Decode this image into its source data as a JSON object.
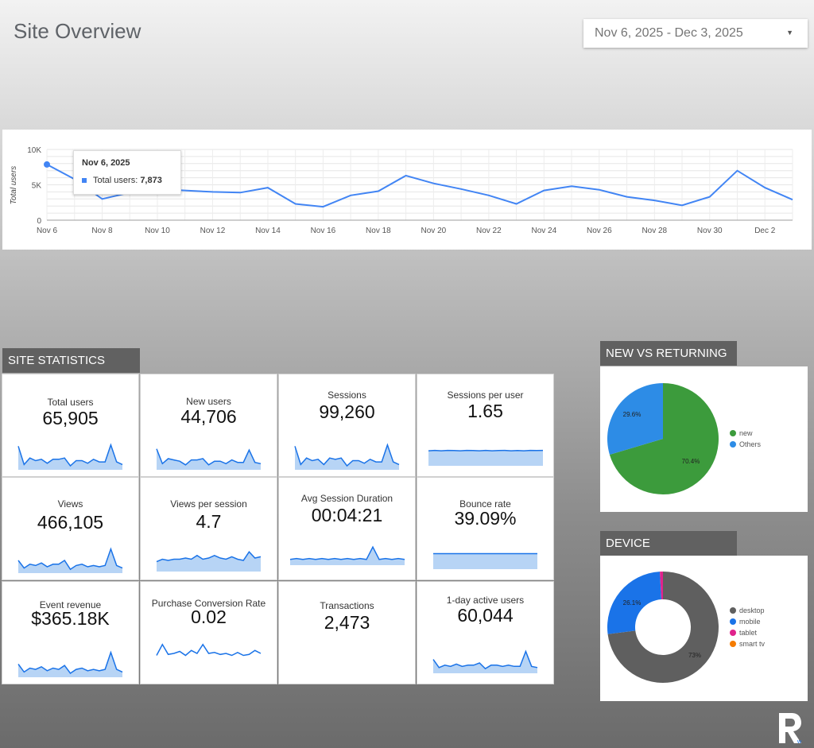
{
  "page": {
    "title": "Site Overview"
  },
  "date_range": {
    "label": "Nov 6, 2025 - Dec 3, 2025"
  },
  "users_chart": {
    "y_axis_label": "Total users",
    "y_ticks": [
      "10K",
      "5K",
      "0"
    ],
    "x_ticks": [
      "Nov 6",
      "Nov 8",
      "Nov 10",
      "Nov 12",
      "Nov 14",
      "Nov 16",
      "Nov 18",
      "Nov 20",
      "Nov 22",
      "Nov 24",
      "Nov 26",
      "Nov 28",
      "Nov 30",
      "Dec 2"
    ],
    "tooltip": {
      "date": "Nov 6, 2025",
      "label": "Total users:",
      "value": "7,873"
    },
    "color": "#4285f4"
  },
  "chart_data": {
    "type": "line",
    "x": [
      "Nov 6",
      "Nov 7",
      "Nov 8",
      "Nov 9",
      "Nov 10",
      "Nov 11",
      "Nov 12",
      "Nov 13",
      "Nov 14",
      "Nov 15",
      "Nov 16",
      "Nov 17",
      "Nov 18",
      "Nov 19",
      "Nov 20",
      "Nov 21",
      "Nov 22",
      "Nov 23",
      "Nov 24",
      "Nov 25",
      "Nov 26",
      "Nov 27",
      "Nov 28",
      "Nov 29",
      "Nov 30",
      "Dec 1",
      "Dec 2",
      "Dec 3"
    ],
    "series": [
      {
        "name": "Total users",
        "values": [
          7873,
          5800,
          3000,
          3900,
          4400,
          4200,
          4000,
          3900,
          4600,
          2300,
          1900,
          3500,
          4100,
          6300,
          5200,
          4400,
          3500,
          2300,
          4200,
          4800,
          4300,
          3300,
          2800,
          2100,
          3300,
          7000,
          4600,
          2900
        ]
      }
    ],
    "ylabel": "Total users",
    "ylim": [
      0,
      10000
    ]
  },
  "site_statistics": {
    "header": "SITE STATISTICS",
    "cards": [
      {
        "label": "Total users",
        "value": "65,905"
      },
      {
        "label": "New users",
        "value": "44,706"
      },
      {
        "label": "Sessions",
        "value": "99,260"
      },
      {
        "label": "Sessions per user",
        "value": "1.65"
      },
      {
        "label": "Views",
        "value": "466,105"
      },
      {
        "label": "Views per session",
        "value": "4.7"
      },
      {
        "label": "Avg Session Duration",
        "value": "00:04:21"
      },
      {
        "label": "Bounce rate",
        "value": "39.09%"
      },
      {
        "label": "Event revenue",
        "value": "$365.18K"
      },
      {
        "label": "Purchase Conversion Rate",
        "value": "0.02"
      },
      {
        "label": "Transactions",
        "value": "2,473"
      },
      {
        "label": "1-day active users",
        "value": "60,044"
      }
    ]
  },
  "new_vs_returning": {
    "header": "NEW VS RETURNING",
    "slices": [
      {
        "label": "new",
        "percent": "70.4%",
        "value": 70.4,
        "color": "#3c9b3c"
      },
      {
        "label": "Others",
        "percent": "29.6%",
        "value": 29.6,
        "color": "#2d8ce6"
      }
    ]
  },
  "device": {
    "header": "DEVICE",
    "slices": [
      {
        "label": "desktop",
        "percent": "73%",
        "value": 73,
        "color": "#5f5f5f"
      },
      {
        "label": "mobile",
        "percent": "26.1%",
        "value": 26.1,
        "color": "#1a73e8"
      },
      {
        "label": "tablet",
        "percent": "",
        "value": 0.9,
        "color": "#e0238c"
      },
      {
        "label": "smart tv",
        "percent": "",
        "value": 0,
        "color": "#f57c00"
      }
    ]
  }
}
